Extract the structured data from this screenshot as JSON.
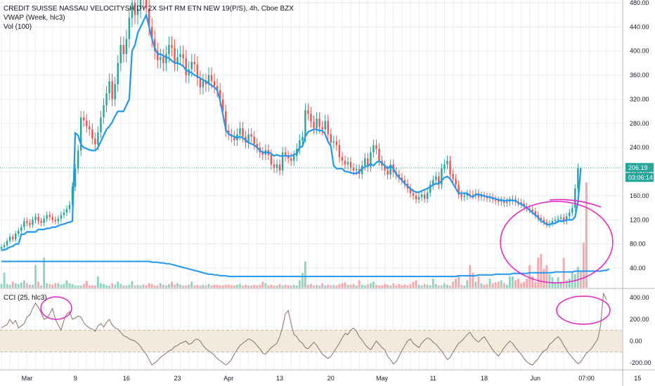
{
  "legend": {
    "main": "CREDIT SUISSE NASSAU VELOCITYSH DY 2X SHT  RM ETN NEW 19(P/S), 4h, Cboe BZX",
    "vwap": "VWAP (Week, hlc3)",
    "vol": "Vol (100)",
    "cci": "CCI (25, hlc3)"
  },
  "price_tags": {
    "last_price": "206.19",
    "countdown": "03:06:14"
  },
  "colors": {
    "up": "#26a69a",
    "down": "#ef5350",
    "vwap": "#2196f3",
    "cci": "#8d6e63",
    "cci_band": "#f3eade",
    "annotation": "#e91ec8",
    "grid": "#e0e3eb",
    "vol_up": "#8ed3bd",
    "vol_down": "#f6a7ac",
    "vol_ma": "#2196f3"
  },
  "chart_data": [
    {
      "type": "candlestick",
      "title": "CREDIT SUISSE NASSAU VELOCITYSH DY 2X SHT  RM ETN NEW 19(P/S), 4h, Cboe BZX",
      "ylim": [
        0,
        490
      ],
      "y_ticks": [
        "480.00",
        "440.00",
        "400.00",
        "360.00",
        "320.00",
        "280.00",
        "240.00",
        "200.00",
        "160.00",
        "120.00",
        "80.00",
        "40.00"
      ],
      "y_tick_values": [
        480,
        440,
        400,
        360,
        320,
        280,
        240,
        200,
        160,
        120,
        80,
        40
      ],
      "x_ticks": [
        "Mar",
        "9",
        "16",
        "23",
        "Apr",
        "13",
        "20",
        "May",
        "11",
        "18",
        "Jun",
        "07:00",
        "15"
      ],
      "x_tick_index": [
        9,
        26,
        44,
        62,
        80,
        98,
        116,
        134,
        152,
        170,
        188,
        206,
        224
      ],
      "last_price": 206.19,
      "close": [
        75,
        78,
        85,
        92,
        88,
        97,
        102,
        108,
        118,
        115,
        112,
        120,
        125,
        118,
        115,
        122,
        128,
        125,
        120,
        118,
        122,
        128,
        132,
        138,
        145,
        175,
        205,
        235,
        290,
        285,
        275,
        270,
        255,
        245,
        265,
        290,
        310,
        330,
        350,
        320,
        345,
        380,
        410,
        395,
        420,
        455,
        480,
        460,
        470,
        495,
        485,
        470,
        440,
        420,
        400,
        385,
        390,
        380,
        395,
        410,
        405,
        380,
        390,
        395,
        388,
        360,
        370,
        382,
        378,
        355,
        340,
        350,
        345,
        360,
        350,
        342,
        335,
        320,
        300,
        268,
        262,
        258,
        252,
        262,
        272,
        258,
        248,
        262,
        258,
        246,
        240,
        232,
        228,
        236,
        228,
        212,
        206,
        212,
        202,
        232,
        226,
        222,
        218,
        226,
        238,
        252,
        258,
        302,
        296,
        283,
        272,
        288,
        274,
        270,
        284,
        262,
        248,
        250,
        244,
        224,
        218,
        212,
        216,
        206,
        202,
        204,
        196,
        210,
        222,
        208,
        232,
        244,
        238,
        218,
        210,
        202,
        195,
        212,
        199,
        195,
        190,
        186,
        180,
        172,
        164,
        160,
        154,
        158,
        162,
        155,
        165,
        178,
        186,
        192,
        178,
        205,
        212,
        218,
        196,
        188,
        178,
        162,
        158,
        160,
        163,
        162,
        161,
        164,
        158,
        160,
        158,
        156,
        158,
        154,
        152,
        150,
        152,
        148,
        150,
        152,
        154,
        150,
        149,
        147,
        142,
        139,
        137,
        134,
        128,
        123,
        120,
        116,
        112,
        114,
        118,
        120,
        122,
        124,
        118,
        126,
        132,
        140,
        172,
        206
      ],
      "vwap": [
        70,
        70,
        72,
        75,
        76,
        80,
        80,
        96,
        96,
        100,
        100,
        100,
        100,
        104,
        104,
        104,
        106,
        106,
        108,
        108,
        110,
        112,
        113,
        115,
        116,
        118,
        264,
        260,
        245,
        240,
        238,
        236,
        235,
        235,
        240,
        250,
        260,
        270,
        275,
        282,
        292,
        300,
        300,
        300,
        310,
        320,
        400,
        410,
        430,
        440,
        450,
        460,
        440,
        420,
        405,
        395,
        395,
        392,
        390,
        388,
        384,
        380,
        380,
        378,
        375,
        368,
        366,
        364,
        360,
        358,
        355,
        352,
        350,
        346,
        343,
        340,
        335,
        318,
        295,
        270,
        262,
        260,
        258,
        256,
        258,
        256,
        252,
        248,
        246,
        244,
        240,
        235,
        232,
        232,
        232,
        230,
        226,
        228,
        226,
        226,
        226,
        226,
        226,
        228,
        230,
        240,
        242,
        258,
        266,
        268,
        270,
        270,
        268,
        268,
        262,
        250,
        242,
        210,
        205,
        205,
        205,
        200,
        200,
        198,
        197,
        197,
        200,
        205,
        208,
        210,
        213,
        210,
        215,
        218,
        214,
        210,
        205,
        210,
        205,
        196,
        190,
        186,
        180,
        176,
        172,
        168,
        166,
        166,
        168,
        170,
        172,
        175,
        178,
        180,
        180,
        185,
        190,
        192,
        188,
        180,
        172,
        164,
        164,
        164,
        164,
        160,
        158,
        162,
        162,
        161,
        160,
        158,
        158,
        156,
        155,
        153,
        153,
        152,
        152,
        153,
        152,
        152,
        148,
        146,
        143,
        140,
        136,
        132,
        128,
        124,
        118,
        116,
        112,
        112,
        114,
        114,
        118,
        118,
        118,
        120,
        120,
        120,
        125,
        150,
        206
      ]
    },
    {
      "type": "bar",
      "title": "Vol (100)",
      "volume": [
        5,
        20,
        5,
        4,
        8,
        6,
        5,
        7,
        10,
        6,
        4,
        4,
        30,
        8,
        3,
        40,
        6,
        5,
        4,
        6,
        6,
        4,
        5,
        10,
        6,
        5,
        3,
        3,
        3,
        5,
        9,
        3,
        3,
        3,
        15,
        6,
        5,
        3,
        3,
        6,
        4,
        8,
        5,
        3,
        3,
        4,
        9,
        3,
        4,
        3,
        4,
        3,
        6,
        5,
        3,
        3,
        6,
        4,
        3,
        5,
        8,
        4,
        6,
        4,
        3,
        3,
        4,
        8,
        3,
        4,
        3,
        4,
        3,
        5,
        3,
        4,
        4,
        3,
        3,
        4,
        4,
        3,
        3,
        4,
        5,
        3,
        4,
        3,
        3,
        4,
        3,
        4,
        8,
        6,
        3,
        4,
        3,
        3,
        5,
        3,
        4,
        3,
        3,
        4,
        3,
        10,
        20,
        35,
        4,
        5,
        3,
        4,
        3,
        6,
        3,
        4,
        3,
        4,
        3,
        5,
        6,
        7,
        4,
        4,
        5,
        3,
        10,
        4,
        3,
        5,
        6,
        8,
        4,
        3,
        3,
        5,
        4,
        3,
        6,
        3,
        5,
        3,
        4,
        3,
        5,
        8,
        10,
        4,
        3,
        5,
        4,
        3,
        12,
        5,
        3,
        3,
        6,
        4,
        3,
        8,
        12,
        15,
        4,
        3,
        10,
        30,
        20,
        8,
        15,
        6,
        4,
        5,
        12,
        6,
        7,
        8,
        10,
        6,
        4,
        15,
        15,
        10,
        12,
        6,
        8,
        12,
        30,
        15,
        8,
        40,
        45,
        25,
        30,
        18,
        14,
        6,
        14,
        8,
        40,
        10,
        12,
        20,
        18,
        28,
        22,
        60,
        140
      ],
      "volume_ma": [
        35,
        35,
        35,
        35,
        35,
        35,
        35,
        35,
        35,
        35,
        35,
        35,
        35,
        35,
        35,
        35,
        35,
        35,
        35,
        35,
        35,
        35,
        35,
        35,
        35,
        35,
        35,
        35,
        35,
        35,
        35,
        35,
        35,
        35,
        35,
        35,
        35,
        35,
        35,
        35,
        35,
        35,
        35,
        35,
        35,
        35,
        35,
        35,
        35,
        35,
        35,
        35,
        35,
        34,
        34,
        34,
        33,
        33,
        32,
        32,
        31,
        30,
        29,
        28,
        27,
        26,
        25,
        24,
        23,
        22,
        21,
        20,
        19,
        18,
        18,
        17,
        17,
        16,
        16,
        16,
        15,
        15,
        15,
        15,
        15,
        15,
        15,
        15,
        15,
        15,
        15,
        15,
        15,
        15,
        15,
        15,
        15,
        15,
        15,
        15,
        15,
        15,
        15,
        15,
        15,
        15,
        15,
        15,
        15,
        15,
        15,
        15,
        15,
        15,
        15,
        15,
        15,
        15,
        15,
        15,
        15,
        15,
        15,
        15,
        15,
        15,
        15,
        15,
        15,
        15,
        15,
        15,
        15,
        15,
        15,
        15,
        15,
        15,
        15,
        15,
        15,
        15,
        15,
        15,
        15,
        15,
        15,
        15,
        15,
        15,
        15,
        15,
        15,
        15,
        15,
        15,
        15,
        15,
        15,
        15,
        15,
        16,
        16,
        16,
        16,
        16,
        16,
        16,
        17,
        17,
        17,
        17,
        17,
        17,
        18,
        18,
        18,
        18,
        18,
        18,
        19,
        19,
        19,
        19,
        19,
        19,
        20,
        20,
        20,
        20,
        20,
        20,
        20,
        20,
        20,
        21,
        21,
        21,
        21,
        21,
        21,
        21,
        22,
        22,
        22,
        22,
        22,
        22,
        22,
        22,
        22,
        22,
        23,
        23,
        25
      ]
    },
    {
      "type": "line",
      "title": "CCI (25, hlc3)",
      "ylim": [
        -250,
        470
      ],
      "y_ticks": [
        "400.00",
        "200.00",
        "0.00",
        "-200.00"
      ],
      "y_tick_values": [
        400,
        200,
        0,
        -200
      ],
      "band": [
        -100,
        100
      ],
      "values": [
        120,
        140,
        150,
        200,
        160,
        190,
        120,
        140,
        160,
        220,
        240,
        300,
        350,
        310,
        260,
        200,
        210,
        250,
        300,
        200,
        150,
        100,
        190,
        250,
        270,
        200,
        210,
        230,
        220,
        170,
        140,
        120,
        110,
        90,
        140,
        160,
        130,
        170,
        200,
        150,
        120,
        110,
        80,
        50,
        40,
        20,
        10,
        0,
        -20,
        -50,
        -90,
        -120,
        -170,
        -220,
        -200,
        -180,
        -150,
        -130,
        -110,
        -90,
        -80,
        -50,
        -40,
        -20,
        -10,
        0,
        -30,
        -20,
        10,
        20,
        0,
        -40,
        -70,
        -90,
        -110,
        -130,
        -160,
        -180,
        -200,
        -220,
        -200,
        -170,
        -120,
        -80,
        -40,
        -20,
        0,
        20,
        10,
        -10,
        -40,
        -70,
        -110,
        -120,
        -90,
        -60,
        -40,
        -20,
        40,
        130,
        250,
        280,
        160,
        60,
        40,
        0,
        -20,
        -60,
        -70,
        -40,
        -10,
        -40,
        -80,
        -120,
        -140,
        -160,
        -140,
        -100,
        -60,
        -20,
        30,
        70,
        60,
        100,
        120,
        90,
        40,
        10,
        -30,
        -60,
        -80,
        -40,
        0,
        -30,
        -60,
        -80,
        -140,
        -170,
        -210,
        -190,
        -140,
        -90,
        -40,
        0,
        20,
        -20,
        -40,
        -60,
        -20,
        10,
        30,
        20,
        -10,
        -30,
        -60,
        -90,
        -130,
        -170,
        -150,
        -100,
        -60,
        -20,
        0,
        30,
        60,
        80,
        40,
        10,
        -10,
        20,
        40,
        0,
        -40,
        -80,
        -110,
        -140,
        -100,
        -60,
        -30,
        0,
        -20,
        -60,
        -90,
        -120,
        -160,
        -190,
        -210,
        -220,
        -190,
        -160,
        -120,
        -90,
        -80,
        -30,
        -10,
        20,
        40,
        10,
        -40,
        -80,
        -120,
        -150,
        -180,
        -210,
        -190,
        -150,
        -110,
        -90,
        -60,
        -20,
        20,
        150,
        440,
        380
      ]
    }
  ]
}
